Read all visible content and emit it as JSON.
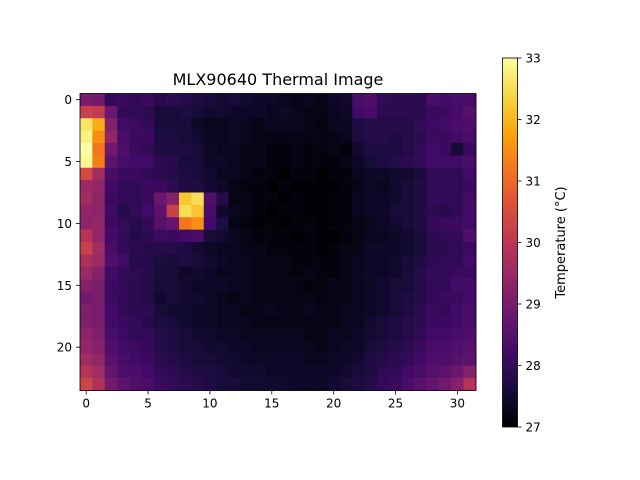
{
  "chart_data": {
    "type": "heatmap",
    "title": "MLX90640 Thermal Image",
    "xlabel": "",
    "ylabel": "",
    "rows": 24,
    "cols": 32,
    "x_ticks": [
      "0",
      "5",
      "10",
      "15",
      "20",
      "25",
      "30"
    ],
    "y_ticks": [
      "0",
      "5",
      "10",
      "15",
      "20"
    ],
    "colormap": "inferno",
    "colorbar": {
      "label": "Temperature (°C)",
      "vmin": 27,
      "vmax": 33,
      "ticks": [
        "27",
        "28",
        "29",
        "30",
        "31",
        "32",
        "33"
      ]
    },
    "values": [
      [
        29.0,
        28.9,
        28.0,
        28.1,
        28.0,
        28.1,
        27.8,
        27.9,
        27.8,
        27.7,
        27.6,
        27.5,
        27.6,
        27.5,
        27.4,
        27.4,
        27.3,
        27.2,
        27.3,
        27.2,
        27.4,
        27.5,
        28.3,
        28.4,
        28.0,
        27.9,
        27.9,
        27.9,
        28.3,
        28.2,
        28.3,
        28.3
      ],
      [
        30.2,
        30.1,
        28.8,
        28.0,
        28.0,
        27.9,
        27.6,
        27.6,
        27.7,
        27.6,
        27.5,
        27.5,
        27.4,
        27.4,
        27.4,
        27.3,
        27.4,
        27.3,
        27.2,
        27.2,
        27.3,
        27.4,
        28.2,
        28.3,
        27.9,
        27.9,
        27.9,
        27.9,
        28.1,
        28.1,
        28.3,
        28.5
      ],
      [
        32.6,
        31.9,
        29.2,
        28.2,
        28.1,
        28.0,
        27.6,
        27.6,
        27.6,
        27.4,
        27.3,
        27.3,
        27.4,
        27.3,
        27.2,
        27.3,
        27.3,
        27.3,
        27.2,
        27.1,
        27.3,
        27.3,
        27.7,
        27.8,
        27.8,
        27.8,
        27.8,
        28.0,
        28.1,
        28.2,
        28.3,
        28.4
      ],
      [
        32.8,
        31.5,
        29.4,
        28.3,
        28.1,
        28.1,
        27.7,
        27.7,
        27.6,
        27.5,
        27.3,
        27.3,
        27.4,
        27.3,
        27.2,
        27.2,
        27.2,
        27.2,
        27.2,
        27.2,
        27.2,
        27.3,
        27.7,
        27.8,
        27.8,
        27.7,
        27.8,
        27.9,
        28.1,
        28.1,
        28.2,
        28.3
      ],
      [
        33.0,
        31.2,
        28.9,
        28.4,
        28.1,
        28.0,
        27.7,
        27.7,
        27.7,
        27.6,
        27.4,
        27.3,
        27.3,
        27.2,
        27.2,
        27.1,
        27.1,
        27.2,
        27.1,
        27.1,
        27.2,
        27.1,
        27.5,
        27.7,
        27.7,
        27.7,
        27.8,
        28.0,
        28.2,
        28.1,
        27.6,
        28.1
      ],
      [
        32.9,
        31.3,
        28.6,
        28.3,
        28.2,
        28.2,
        27.9,
        27.8,
        27.6,
        27.6,
        27.4,
        27.4,
        27.3,
        27.2,
        27.2,
        27.1,
        27.1,
        27.2,
        27.1,
        27.1,
        27.1,
        27.2,
        27.4,
        27.6,
        27.7,
        27.8,
        27.9,
        28.0,
        28.2,
        28.2,
        28.2,
        28.3
      ],
      [
        30.4,
        29.6,
        28.3,
        28.1,
        28.1,
        28.0,
        27.9,
        27.8,
        27.7,
        27.6,
        27.5,
        27.3,
        27.3,
        27.2,
        27.1,
        27.1,
        27.0,
        27.1,
        27.1,
        27.0,
        27.1,
        27.1,
        27.3,
        27.4,
        27.4,
        27.5,
        27.5,
        27.6,
        28.0,
        28.0,
        28.0,
        28.2
      ],
      [
        29.5,
        29.4,
        28.2,
        28.0,
        28.0,
        28.1,
        28.1,
        27.9,
        27.7,
        27.7,
        27.5,
        27.4,
        27.2,
        27.1,
        27.1,
        27.0,
        27.1,
        27.0,
        27.0,
        27.0,
        27.0,
        27.1,
        27.2,
        27.4,
        27.3,
        27.5,
        27.6,
        27.7,
        28.0,
        28.0,
        28.0,
        28.1
      ],
      [
        29.6,
        29.3,
        28.1,
        28.0,
        28.0,
        28.1,
        28.8,
        29.2,
        32.2,
        32.5,
        28.4,
        27.8,
        27.2,
        27.2,
        27.1,
        27.1,
        27.0,
        27.1,
        27.0,
        27.0,
        27.1,
        27.1,
        27.3,
        27.4,
        27.4,
        27.5,
        27.6,
        27.7,
        28.0,
        28.0,
        28.0,
        28.2
      ],
      [
        29.4,
        29.3,
        28.2,
        27.8,
        28.0,
        28.2,
        28.6,
        30.2,
        32.5,
        32.2,
        28.3,
        27.5,
        27.3,
        27.2,
        27.1,
        27.0,
        27.1,
        27.1,
        27.0,
        27.0,
        27.1,
        27.1,
        27.3,
        27.4,
        27.4,
        27.6,
        27.6,
        27.7,
        27.9,
        27.8,
        28.0,
        28.2
      ],
      [
        29.3,
        29.4,
        28.1,
        28.0,
        27.8,
        28.0,
        28.5,
        28.7,
        31.2,
        31.5,
        28.2,
        27.7,
        27.2,
        27.1,
        27.0,
        27.1,
        27.0,
        27.1,
        27.1,
        27.0,
        27.1,
        27.1,
        27.2,
        27.3,
        27.4,
        27.5,
        27.6,
        27.7,
        28.0,
        28.1,
        28.1,
        28.2
      ],
      [
        29.9,
        29.4,
        28.2,
        28.0,
        27.8,
        27.9,
        28.1,
        28.1,
        28.2,
        28.3,
        27.6,
        27.5,
        27.3,
        27.2,
        27.1,
        27.1,
        27.1,
        27.0,
        27.1,
        27.0,
        27.0,
        27.1,
        27.2,
        27.3,
        27.3,
        27.4,
        27.5,
        27.6,
        27.9,
        28.0,
        28.0,
        28.4
      ],
      [
        30.2,
        29.6,
        28.3,
        28.0,
        27.9,
        27.8,
        27.8,
        27.8,
        27.7,
        27.5,
        27.4,
        27.3,
        27.3,
        27.2,
        27.2,
        27.1,
        27.1,
        27.1,
        27.1,
        27.0,
        27.1,
        27.2,
        27.2,
        27.4,
        27.4,
        27.4,
        27.5,
        27.6,
        27.9,
        27.9,
        28.0,
        28.1
      ],
      [
        29.8,
        29.5,
        28.4,
        28.2,
        27.8,
        27.8,
        27.7,
        27.6,
        27.7,
        27.6,
        27.5,
        27.4,
        27.3,
        27.3,
        27.2,
        27.2,
        27.2,
        27.1,
        27.1,
        27.1,
        27.1,
        27.2,
        27.3,
        27.4,
        27.4,
        27.5,
        27.6,
        27.7,
        27.9,
        28.0,
        28.0,
        28.2
      ],
      [
        29.5,
        29.2,
        28.2,
        28.0,
        27.9,
        27.8,
        27.6,
        27.6,
        27.4,
        27.5,
        27.4,
        27.3,
        27.3,
        27.3,
        27.2,
        27.2,
        27.2,
        27.1,
        27.2,
        27.1,
        27.1,
        27.2,
        27.3,
        27.4,
        27.4,
        27.5,
        27.6,
        27.8,
        28.0,
        28.0,
        28.1,
        28.1
      ],
      [
        29.2,
        29.0,
        28.1,
        28.0,
        27.9,
        27.8,
        27.6,
        27.6,
        27.5,
        27.4,
        27.4,
        27.4,
        27.3,
        27.3,
        27.2,
        27.2,
        27.2,
        27.2,
        27.1,
        27.1,
        27.2,
        27.2,
        27.3,
        27.4,
        27.5,
        27.6,
        27.6,
        27.8,
        28.0,
        28.0,
        28.2,
        28.2
      ],
      [
        28.9,
        29.0,
        28.1,
        28.0,
        27.9,
        27.8,
        27.5,
        27.6,
        27.5,
        27.5,
        27.4,
        27.3,
        27.2,
        27.3,
        27.2,
        27.2,
        27.2,
        27.2,
        27.2,
        27.1,
        27.2,
        27.2,
        27.3,
        27.4,
        27.5,
        27.6,
        27.7,
        27.8,
        28.0,
        28.1,
        28.1,
        28.2
      ],
      [
        29.1,
        29.0,
        28.2,
        28.0,
        27.9,
        27.9,
        27.6,
        27.5,
        27.5,
        27.4,
        27.4,
        27.3,
        27.3,
        27.2,
        27.2,
        27.3,
        27.2,
        27.2,
        27.3,
        27.2,
        27.2,
        27.3,
        27.3,
        27.4,
        27.5,
        27.6,
        27.7,
        27.9,
        28.1,
        28.0,
        28.2,
        28.3
      ],
      [
        29.1,
        29.0,
        28.2,
        28.1,
        28.0,
        27.8,
        27.7,
        27.6,
        27.5,
        27.4,
        27.4,
        27.3,
        27.3,
        27.3,
        27.2,
        27.2,
        27.2,
        27.2,
        27.2,
        27.2,
        27.2,
        27.3,
        27.3,
        27.5,
        27.6,
        27.7,
        27.8,
        27.9,
        28.1,
        28.1,
        28.2,
        28.3
      ],
      [
        29.3,
        29.1,
        28.3,
        28.1,
        28.0,
        28.0,
        27.8,
        27.7,
        27.6,
        27.5,
        27.5,
        27.4,
        27.4,
        27.3,
        27.3,
        27.3,
        27.3,
        27.3,
        27.2,
        27.2,
        27.3,
        27.3,
        27.4,
        27.5,
        27.6,
        27.7,
        27.8,
        28.0,
        28.2,
        28.2,
        28.3,
        28.4
      ],
      [
        29.4,
        29.2,
        28.4,
        28.2,
        28.1,
        28.0,
        27.8,
        27.7,
        27.6,
        27.6,
        27.5,
        27.5,
        27.4,
        27.4,
        27.3,
        27.3,
        27.3,
        27.3,
        27.3,
        27.2,
        27.3,
        27.4,
        27.4,
        27.6,
        27.7,
        27.8,
        27.9,
        28.1,
        28.3,
        28.3,
        28.4,
        28.5
      ],
      [
        29.6,
        29.4,
        28.5,
        28.3,
        28.2,
        28.1,
        27.9,
        27.8,
        27.7,
        27.6,
        27.6,
        27.5,
        27.5,
        27.4,
        27.4,
        27.4,
        27.4,
        27.4,
        27.3,
        27.3,
        27.4,
        27.4,
        27.5,
        27.7,
        27.8,
        27.9,
        28.0,
        28.2,
        28.4,
        28.4,
        28.5,
        28.6
      ],
      [
        29.9,
        29.6,
        28.7,
        28.4,
        28.3,
        28.2,
        28.0,
        27.9,
        27.8,
        27.7,
        27.7,
        27.6,
        27.5,
        27.5,
        27.5,
        27.4,
        27.4,
        27.4,
        27.4,
        27.4,
        27.4,
        27.5,
        27.6,
        27.7,
        27.9,
        28.0,
        28.2,
        28.3,
        28.5,
        28.6,
        28.8,
        29.2
      ],
      [
        30.3,
        29.8,
        28.9,
        28.6,
        28.4,
        28.3,
        28.1,
        28.0,
        27.9,
        27.8,
        27.7,
        27.6,
        27.6,
        27.5,
        27.5,
        27.5,
        27.5,
        27.4,
        27.4,
        27.4,
        27.5,
        27.6,
        27.7,
        27.8,
        28.0,
        28.1,
        28.3,
        28.5,
        28.7,
        28.9,
        29.2,
        29.9
      ]
    ]
  }
}
